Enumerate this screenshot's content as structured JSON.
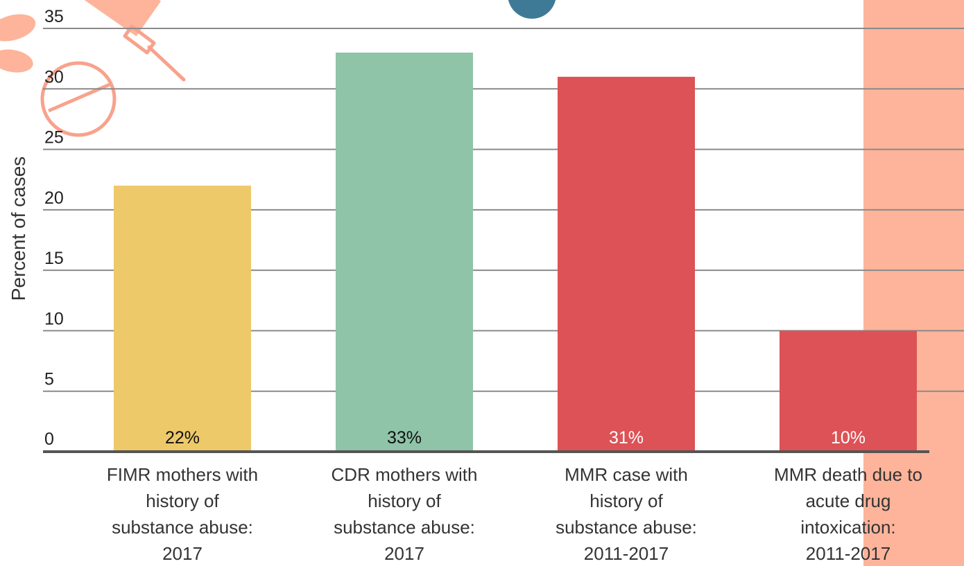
{
  "chart_data": {
    "type": "bar",
    "title": "",
    "xlabel": "",
    "ylabel": "Percent of cases",
    "ylim": [
      0,
      35
    ],
    "yticks": [
      0,
      5,
      10,
      15,
      20,
      25,
      30,
      35
    ],
    "grid": true,
    "categories": [
      [
        "FIMR mothers with",
        "history of",
        "substance abuse:",
        "2017"
      ],
      [
        "CDR mothers with",
        "history of",
        "substance abuse:",
        "2017"
      ],
      [
        "MMR case with",
        "history of",
        "substance abuse:",
        "2011-2017"
      ],
      [
        "MMR death due to",
        "acute drug",
        "intoxication:",
        "2011-2017"
      ]
    ],
    "values": [
      22,
      33,
      31,
      10
    ],
    "data_labels": [
      "22%",
      "33%",
      "31%",
      "10%"
    ],
    "colors": [
      "#EDC96A",
      "#8FC4A8",
      "#DD5256",
      "#DD5256"
    ],
    "label_colors": [
      "#111111",
      "#111111",
      "#FFFFFF",
      "#FFFFFF"
    ]
  },
  "decor": {
    "accent_salmon": "#FDB49B",
    "accent_blue": "#3E7A95",
    "icons": [
      "syringe-icon",
      "leaf-icon",
      "no-symbol-icon"
    ]
  }
}
